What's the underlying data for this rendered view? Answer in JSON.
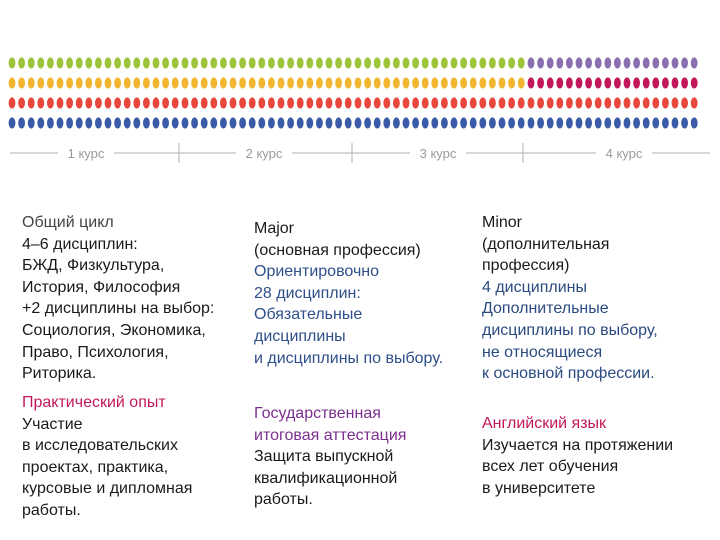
{
  "dot_rows": [
    {
      "color": "#9dc43a",
      "group_colors": [
        "#9dc43a",
        "#9dc43a",
        "#9dc43a",
        "#8a6fb0"
      ]
    },
    {
      "color": "#f2b630",
      "group_colors": [
        "#f2b630",
        "#f2b630",
        "#f2b630",
        "#c2185b"
      ]
    },
    {
      "color": "#e8473c",
      "group_colors": [
        "#e8473c",
        "#e8473c",
        "#e8473c",
        "#e8473c"
      ]
    },
    {
      "color": "#3b5ba8",
      "group_colors": [
        "#3b5ba8",
        "#3b5ba8",
        "#3b5ba8",
        "#3b5ba8"
      ]
    }
  ],
  "courses": [
    "1 курс",
    "2 курс",
    "3 курс",
    "4 курс"
  ],
  "blocks": {
    "general": {
      "title": "Общий цикл",
      "text": "4–6 дисциплин:\nБЖД, Физкультура,\nИстория, Философия\n+2 дисциплины на выбор:\nСоциология, Экономика,\nПраво, Психология,\nРиторика."
    },
    "major": {
      "title": "Major\n(основная профессия)",
      "text": "Ориентировочно\n28 дисциплин:\nОбязательные\nдисциплины\nи дисциплины по выбору."
    },
    "minor": {
      "title": "Minor\n(дополнительная\nпрофессия)",
      "text": "4 дисциплины\nДополнительные\nдисциплины по выбору,\nне относящиеся\nк основной профессии."
    },
    "practice": {
      "title": "Практический опыт",
      "text": "Участие\nв исследовательских\nпроектах, практика,\nкурсовые и дипломная\nработы."
    },
    "state": {
      "title": "Государственная\nитоговая аттестация",
      "text": "Защита выпускной\nквалификационной\nработы."
    },
    "english": {
      "title": "Английский язык",
      "text": "Изучается на протяжении\nвсех лет обучения\nв университете"
    }
  }
}
